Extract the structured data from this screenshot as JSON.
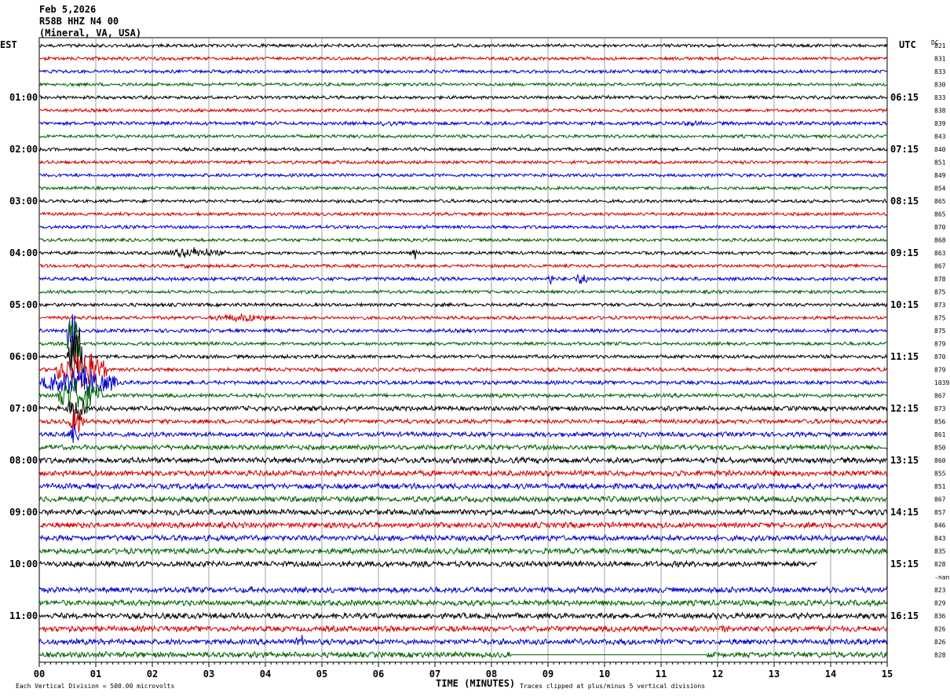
{
  "header": {
    "date": "Feb 5,2026",
    "station": "R58B HHZ N4 00",
    "location": "(Mineral, VA, USA)"
  },
  "left_tz": "EST",
  "right_tz": "UTC",
  "dc_label": "DC",
  "footer": {
    "xlabel": "TIME (MINUTES)",
    "scale_note": "Each Vertical Division =  500.00 microvolts",
    "clip_note": "Traces clipped at plus/minus 5 vertical divisions"
  },
  "colors": {
    "trace_cycle": [
      "#000000",
      "#d40000",
      "#0000cc",
      "#006400"
    ],
    "grid": "#888888",
    "text": "#000000"
  },
  "chart_data": {
    "type": "line",
    "xlabel": "TIME (MINUTES)",
    "xlim": [
      0,
      15
    ],
    "x_ticks": [
      "00",
      "01",
      "02",
      "03",
      "04",
      "05",
      "06",
      "07",
      "08",
      "09",
      "10",
      "11",
      "12",
      "13",
      "14",
      "15"
    ],
    "left_hour_labels": [
      {
        "row": 4,
        "text": "01:00"
      },
      {
        "row": 8,
        "text": "02:00"
      },
      {
        "row": 12,
        "text": "03:00"
      },
      {
        "row": 16,
        "text": "04:00"
      },
      {
        "row": 20,
        "text": "05:00"
      },
      {
        "row": 24,
        "text": "06:00"
      },
      {
        "row": 28,
        "text": "07:00"
      },
      {
        "row": 32,
        "text": "08:00"
      },
      {
        "row": 36,
        "text": "09:00"
      },
      {
        "row": 40,
        "text": "10:00"
      },
      {
        "row": 44,
        "text": "11:00"
      }
    ],
    "right_hour_labels": [
      {
        "row": 4,
        "text": "06:15"
      },
      {
        "row": 8,
        "text": "07:15"
      },
      {
        "row": 12,
        "text": "08:15"
      },
      {
        "row": 16,
        "text": "09:15"
      },
      {
        "row": 20,
        "text": "10:15"
      },
      {
        "row": 24,
        "text": "11:15"
      },
      {
        "row": 28,
        "text": "12:15"
      },
      {
        "row": 32,
        "text": "13:15"
      },
      {
        "row": 36,
        "text": "14:15"
      },
      {
        "row": 40,
        "text": "15:15"
      },
      {
        "row": 44,
        "text": "16:15"
      }
    ],
    "dc_offsets": [
      "821",
      "831",
      "833",
      "830",
      "833",
      "838",
      "839",
      "843",
      "840",
      "851",
      "849",
      "854",
      "865",
      "865",
      "870",
      "868",
      "863",
      "867",
      "878",
      "875",
      "873",
      "875",
      "875",
      "879",
      "870",
      "879",
      "1039",
      "867",
      "873",
      "856",
      "861",
      "850",
      "860",
      "855",
      "851",
      "867",
      "857",
      "846",
      "843",
      "835",
      "828",
      "-nan",
      "823",
      "829",
      "836",
      "826",
      "826",
      "828"
    ],
    "rows": [
      {
        "amp": 2.2
      },
      {
        "amp": 2.2
      },
      {
        "amp": 2.2
      },
      {
        "amp": 2.2
      },
      {
        "amp": 2.2
      },
      {
        "amp": 2.2
      },
      {
        "amp": 2.4,
        "events": [
          {
            "x0": 6.0,
            "x1": 6.3,
            "a": 5
          },
          {
            "x0": 11.2,
            "x1": 11.9,
            "a": 4
          },
          {
            "x0": 13.4,
            "x1": 13.9,
            "a": 3
          }
        ]
      },
      {
        "amp": 2.2
      },
      {
        "amp": 2.2
      },
      {
        "amp": 2.2
      },
      {
        "amp": 2.2
      },
      {
        "amp": 2.2
      },
      {
        "amp": 2.2
      },
      {
        "amp": 2.2
      },
      {
        "amp": 2.2
      },
      {
        "amp": 2.2
      },
      {
        "amp": 2.2,
        "events": [
          {
            "x0": 2.2,
            "x1": 3.3,
            "a": 8
          },
          {
            "x0": 6.6,
            "x1": 6.7,
            "a": 10
          }
        ]
      },
      {
        "amp": 2.2,
        "events": [
          {
            "x0": 2.55,
            "x1": 2.7,
            "a": 7
          },
          {
            "x0": 13.8,
            "x1": 14.0,
            "a": 3
          }
        ]
      },
      {
        "amp": 2.4,
        "events": [
          {
            "x0": 3.4,
            "x1": 3.5,
            "a": 5
          },
          {
            "x0": 9.0,
            "x1": 9.1,
            "a": 10
          },
          {
            "x0": 9.4,
            "x1": 9.8,
            "a": 8
          }
        ]
      },
      {
        "amp": 2.2
      },
      {
        "amp": 2.3
      },
      {
        "amp": 2.3,
        "events": [
          {
            "x0": 3.0,
            "x1": 4.2,
            "a": 7
          }
        ]
      },
      {
        "amp": 2.4,
        "events": [
          {
            "x0": 0.5,
            "x1": 0.65,
            "a": 50
          }
        ]
      },
      {
        "amp": 2.3,
        "events": [
          {
            "x0": 0.5,
            "x1": 0.7,
            "a": 50
          }
        ]
      },
      {
        "amp": 2.4,
        "events": [
          {
            "x0": 0.5,
            "x1": 0.8,
            "a": 55
          }
        ]
      },
      {
        "amp": 2.4,
        "events": [
          {
            "x0": 0.3,
            "x1": 1.2,
            "a": 30
          }
        ]
      },
      {
        "amp": 2.6,
        "events": [
          {
            "x0": 0.05,
            "x1": 1.4,
            "a": 22
          }
        ]
      },
      {
        "amp": 2.6,
        "events": [
          {
            "x0": 0.3,
            "x1": 1.1,
            "a": 30
          }
        ]
      },
      {
        "amp": 3.2,
        "events": [
          {
            "x0": 0.5,
            "x1": 0.8,
            "a": 25
          }
        ]
      },
      {
        "amp": 3.0,
        "events": [
          {
            "x0": 0.5,
            "x1": 0.8,
            "a": 20
          }
        ]
      },
      {
        "amp": 3.2,
        "events": [
          {
            "x0": 0.5,
            "x1": 0.7,
            "a": 18
          },
          {
            "x0": 3.1,
            "x1": 3.3,
            "a": 4
          }
        ]
      },
      {
        "amp": 3.3
      },
      {
        "amp": 3.8
      },
      {
        "amp": 3.8
      },
      {
        "amp": 3.8
      },
      {
        "amp": 3.8
      },
      {
        "amp": 3.8
      },
      {
        "amp": 3.8
      },
      {
        "amp": 3.8,
        "events": [
          {
            "x0": 5.3,
            "x1": 5.6,
            "a": 5
          }
        ]
      },
      {
        "amp": 3.8,
        "events": [
          {
            "x0": 11.6,
            "x1": 11.8,
            "a": 5
          }
        ]
      },
      {
        "amp": 3.8,
        "end": 13.75
      },
      {
        "amp": 0,
        "end": 0
      },
      {
        "amp": 3.8,
        "events": [
          {
            "x0": 3.5,
            "x1": 3.9,
            "a": 6
          }
        ]
      },
      {
        "amp": 3.8
      },
      {
        "amp": 3.8
      },
      {
        "amp": 3.8,
        "events": [
          {
            "x0": 6.1,
            "x1": 6.25,
            "a": 9
          },
          {
            "x0": 12.0,
            "x1": 12.2,
            "a": 8
          }
        ]
      },
      {
        "amp": 3.8,
        "events": [
          {
            "x0": 4.5,
            "x1": 4.8,
            "a": 9
          },
          {
            "x0": 5.4,
            "x1": 5.5,
            "a": 5
          }
        ]
      },
      {
        "amp": 3.8,
        "flat": [
          {
            "x0": 8.35,
            "x1": 9.6
          },
          {
            "x0": 9.6,
            "x1": 10.0
          },
          {
            "x0": 10.0,
            "x1": 10.9
          },
          {
            "x0": 10.9,
            "x1": 11.8
          }
        ]
      }
    ]
  }
}
